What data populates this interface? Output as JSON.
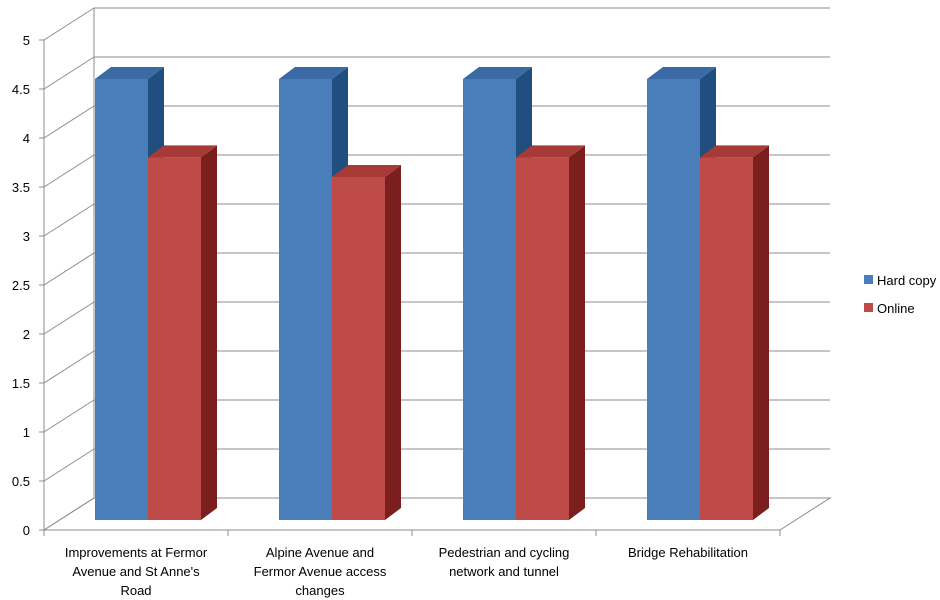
{
  "chart_data": {
    "type": "bar",
    "categories": [
      "Improvements at Fermor Avenue and St Anne's Road",
      "Alpine Avenue and Fermor Avenue access changes",
      "Pedestrian and cycling network and tunnel",
      "Bridge Rehabilitation"
    ],
    "category_lines": [
      [
        "Improvements at Fermor",
        "Avenue and St Anne's",
        "Road"
      ],
      [
        "Alpine Avenue and",
        "Fermor Avenue access",
        "changes"
      ],
      [
        "Pedestrian and cycling",
        "network and tunnel"
      ],
      [
        "Bridge Rehabilitation"
      ]
    ],
    "series": [
      {
        "name": "Hard copy",
        "values": [
          4.5,
          4.5,
          4.5,
          4.5
        ],
        "color": "#4a7ebb",
        "top_color": "#3a6aa3",
        "side_color": "#1f4e7f"
      },
      {
        "name": "Online",
        "values": [
          3.7,
          3.5,
          3.7,
          3.7
        ],
        "color": "#be4b48",
        "top_color": "#a63a37",
        "side_color": "#7b1e1e"
      }
    ],
    "ylim": [
      0,
      5
    ],
    "yticks": [
      "0",
      "0.5",
      "1",
      "1.5",
      "2",
      "2.5",
      "3",
      "3.5",
      "4",
      "4.5",
      "5"
    ],
    "grid": true,
    "legend": "right",
    "three_d": true,
    "title": "",
    "xlabel": "",
    "ylabel": ""
  }
}
